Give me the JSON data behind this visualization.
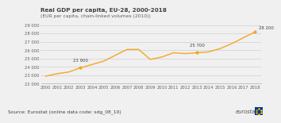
{
  "title": "Real GDP per capita, EU-28, 2000-2018",
  "subtitle": "(EUR per capita, chain-linked volumes (2010))",
  "years": [
    2000,
    2001,
    2002,
    2003,
    2004,
    2005,
    2006,
    2007,
    2008,
    2009,
    2010,
    2011,
    2012,
    2013,
    2014,
    2015,
    2016,
    2017,
    2018
  ],
  "values": [
    22900,
    23200,
    23400,
    23900,
    24300,
    24700,
    25400,
    26100,
    26100,
    24900,
    25200,
    25700,
    25600,
    25700,
    25800,
    26200,
    26800,
    27500,
    28200
  ],
  "line_color": "#f5a623",
  "ylim": [
    22000,
    29500
  ],
  "yticks": [
    22000,
    23000,
    24000,
    25000,
    26000,
    27000,
    28000,
    29000
  ],
  "annotations": [
    {
      "year": 2003,
      "value": 23900,
      "label": "23 900",
      "ha": "center",
      "ox": 0,
      "oy": 5
    },
    {
      "year": 2013,
      "value": 25700,
      "label": "25 700",
      "ha": "center",
      "ox": 0,
      "oy": 5
    },
    {
      "year": 2018,
      "value": 28200,
      "label": "28 200",
      "ha": "left",
      "ox": 3,
      "oy": 2
    }
  ],
  "source_text": "Source: Eurostat (online data code: sdg_08_10)",
  "eurostat_text": "eurostat",
  "background_color": "#f0f0f0",
  "plot_bg_color": "#f0f0f0",
  "title_color": "#404040",
  "subtitle_color": "#606060",
  "source_color": "#404040",
  "tick_color": "#606060",
  "grid_color": "#c8c8c8",
  "spine_color": "#b0b0b0",
  "title_fontsize": 5.2,
  "subtitle_fontsize": 4.3,
  "tick_fontsize": 3.8,
  "annotation_fontsize": 3.9,
  "source_fontsize": 4.3,
  "eurostat_fontsize": 4.8
}
